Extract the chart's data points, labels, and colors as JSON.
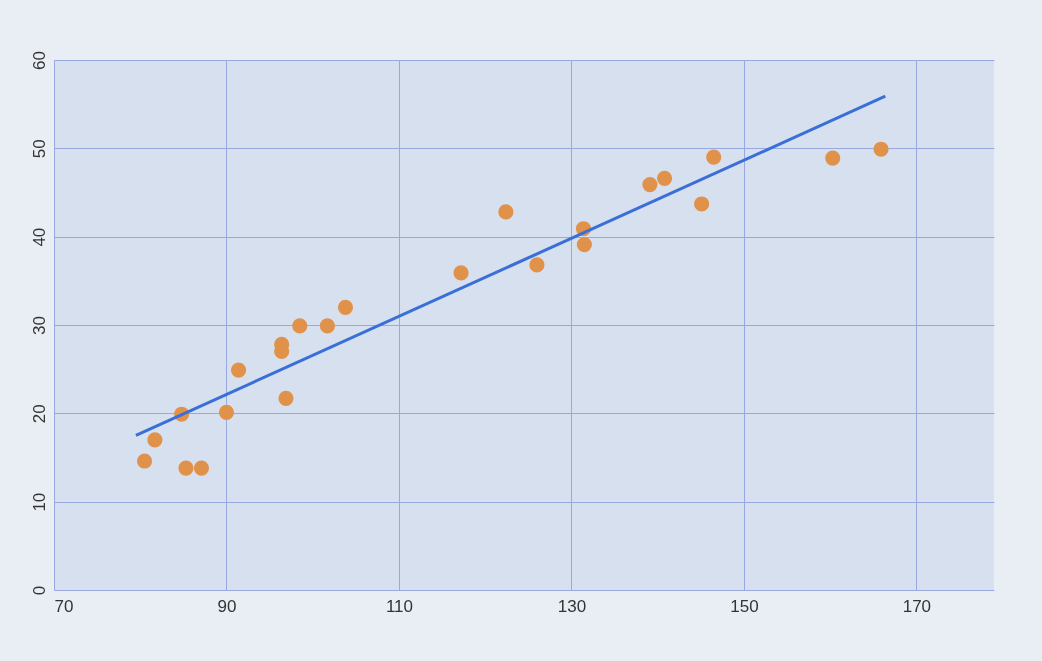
{
  "chart_data": {
    "type": "scatter",
    "xlim": [
      70,
      179
    ],
    "xticks": [
      70,
      90,
      110,
      130,
      150,
      170
    ],
    "ylim": [
      0,
      60
    ],
    "yticks": [
      0,
      10,
      20,
      30,
      40,
      50,
      60
    ],
    "grid": true,
    "series": [
      {
        "marker": "circle",
        "color": "#e0924a",
        "x": [
          80.5,
          81.7,
          84.8,
          85.3,
          87.1,
          90.0,
          91.4,
          96.4,
          96.4,
          96.9,
          98.5,
          101.7,
          103.8,
          117.2,
          122.4,
          126.0,
          131.4,
          131.5,
          139.1,
          140.8,
          145.1,
          146.5,
          160.3,
          165.9
        ],
        "values": [
          14.6,
          17.0,
          19.9,
          13.8,
          13.8,
          20.1,
          24.9,
          27.8,
          27.0,
          21.7,
          29.9,
          29.9,
          32.0,
          35.9,
          42.8,
          36.8,
          40.9,
          39.1,
          45.9,
          46.6,
          43.7,
          49.0,
          48.9,
          49.9
        ]
      },
      {
        "type": "line",
        "color": "#3a6fd8",
        "x": [
          79.5,
          166.4
        ],
        "values": [
          17.5,
          55.9
        ]
      }
    ]
  }
}
